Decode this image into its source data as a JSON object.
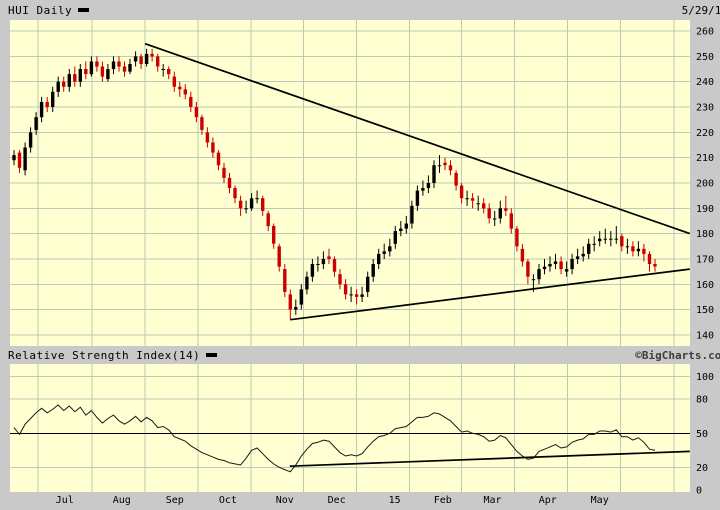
{
  "header": {
    "title": "HUI Daily",
    "date": "5/29/15"
  },
  "rsi_header": {
    "label": "Relative Strength Index(14)",
    "copyright": "©BigCharts.com"
  },
  "colors": {
    "page_bg": "#c9c9c9",
    "plot_bg": "#ffffd2",
    "grid": "#b8ccb8",
    "candle_up": "#000000",
    "candle_down": "#cc0000",
    "trendline": "#000000",
    "rsi_line": "#1a1a1a",
    "hline": "#000000",
    "text": "#000000"
  },
  "x_axis": {
    "months": [
      {
        "label": "Jul",
        "i": 9.2
      },
      {
        "label": "Aug",
        "i": 19.5
      },
      {
        "label": "Sep",
        "i": 29.1
      },
      {
        "label": "Oct",
        "i": 38.7
      },
      {
        "label": "Nov",
        "i": 49.0
      },
      {
        "label": "Dec",
        "i": 58.4
      },
      {
        "label": "15",
        "i": 68.9
      },
      {
        "label": "Feb",
        "i": 77.6
      },
      {
        "label": "Mar",
        "i": 86.6
      },
      {
        "label": "Apr",
        "i": 96.6
      },
      {
        "label": "May",
        "i": 106.0
      }
    ],
    "boundaries": [
      4.3,
      14.1,
      23.7,
      33.3,
      42.9,
      52.4,
      62.0,
      71.6,
      81.0,
      90.6,
      100.2,
      109.8,
      119.4
    ]
  },
  "chart_data": [
    {
      "type": "candlestick",
      "title": "HUI Daily",
      "xlabel": "",
      "ylabel": "",
      "ylim": [
        138,
        262
      ],
      "yticks": [
        140,
        150,
        160,
        170,
        180,
        190,
        200,
        210,
        220,
        230,
        240,
        250,
        260
      ],
      "candles": [
        [
          209,
          213,
          207,
          211
        ],
        [
          212,
          213,
          204,
          206
        ],
        [
          205,
          216,
          203,
          214
        ],
        [
          214,
          222,
          212,
          220
        ],
        [
          221,
          228,
          219,
          226
        ],
        [
          226,
          234,
          224,
          232
        ],
        [
          232,
          234,
          228,
          230
        ],
        [
          230,
          238,
          228,
          236
        ],
        [
          236,
          242,
          234,
          240
        ],
        [
          240,
          242,
          236,
          238
        ],
        [
          238,
          245,
          236,
          243
        ],
        [
          243,
          246,
          238,
          240
        ],
        [
          240,
          247,
          238,
          245
        ],
        [
          245,
          248,
          241,
          243
        ],
        [
          243,
          250,
          242,
          248
        ],
        [
          248,
          250,
          244,
          246
        ],
        [
          246,
          248,
          240,
          242
        ],
        [
          241,
          247,
          240,
          245
        ],
        [
          245,
          250,
          243,
          248
        ],
        [
          248,
          250,
          244,
          246
        ],
        [
          246,
          248,
          242,
          244
        ],
        [
          244,
          249,
          243,
          247
        ],
        [
          248,
          252,
          246,
          250
        ],
        [
          250,
          251,
          245,
          247
        ],
        [
          247,
          253,
          246,
          251
        ],
        [
          251,
          253,
          248,
          250
        ],
        [
          250,
          251,
          244,
          246
        ],
        [
          245,
          247,
          242,
          245
        ],
        [
          245,
          246,
          241,
          243
        ],
        [
          242,
          244,
          236,
          238
        ],
        [
          238,
          240,
          234,
          237
        ],
        [
          237,
          239,
          233,
          235
        ],
        [
          234,
          236,
          228,
          230
        ],
        [
          230,
          232,
          224,
          226
        ],
        [
          226,
          227,
          219,
          221
        ],
        [
          220,
          222,
          214,
          216
        ],
        [
          216,
          218,
          210,
          212
        ],
        [
          212,
          213,
          205,
          207
        ],
        [
          206,
          208,
          200,
          202
        ],
        [
          202,
          204,
          196,
          198
        ],
        [
          198,
          199,
          192,
          194
        ],
        [
          193,
          195,
          187,
          190
        ],
        [
          190,
          193,
          188,
          190
        ],
        [
          190,
          196,
          189,
          194
        ],
        [
          194,
          197,
          192,
          194
        ],
        [
          194,
          195,
          187,
          189
        ],
        [
          188,
          189,
          181,
          183
        ],
        [
          183,
          184,
          174,
          176
        ],
        [
          175,
          176,
          165,
          167
        ],
        [
          166,
          168,
          155,
          157
        ],
        [
          156,
          158,
          146,
          150
        ],
        [
          150,
          154,
          148,
          151
        ],
        [
          152,
          160,
          150,
          158
        ],
        [
          158,
          165,
          156,
          163
        ],
        [
          163,
          170,
          161,
          168
        ],
        [
          168,
          171,
          165,
          168
        ],
        [
          168,
          173,
          166,
          170
        ],
        [
          171,
          174,
          168,
          170
        ],
        [
          170,
          171,
          163,
          165
        ],
        [
          164,
          166,
          158,
          160
        ],
        [
          160,
          162,
          154,
          156
        ],
        [
          156,
          159,
          153,
          156
        ],
        [
          156,
          158,
          152,
          155
        ],
        [
          155,
          159,
          153,
          156
        ],
        [
          157,
          165,
          155,
          163
        ],
        [
          163,
          170,
          161,
          168
        ],
        [
          168,
          174,
          166,
          172
        ],
        [
          172,
          176,
          170,
          173
        ],
        [
          173,
          178,
          171,
          175
        ],
        [
          176,
          183,
          174,
          181
        ],
        [
          181,
          185,
          179,
          182
        ],
        [
          182,
          187,
          180,
          184
        ],
        [
          184,
          193,
          182,
          191
        ],
        [
          191,
          199,
          189,
          197
        ],
        [
          197,
          201,
          195,
          198
        ],
        [
          198,
          203,
          196,
          200
        ],
        [
          200,
          209,
          198,
          207
        ],
        [
          207,
          211,
          204,
          207
        ],
        [
          208,
          210,
          205,
          207
        ],
        [
          207,
          209,
          203,
          205
        ],
        [
          204,
          205,
          197,
          199
        ],
        [
          199,
          200,
          192,
          194
        ],
        [
          194,
          197,
          191,
          194
        ],
        [
          194,
          196,
          190,
          193
        ],
        [
          192,
          195,
          189,
          192
        ],
        [
          192,
          194,
          188,
          190
        ],
        [
          190,
          192,
          184,
          186
        ],
        [
          186,
          189,
          183,
          186
        ],
        [
          186,
          193,
          184,
          190
        ],
        [
          190,
          195,
          187,
          189
        ],
        [
          188,
          190,
          180,
          182
        ],
        [
          182,
          183,
          173,
          175
        ],
        [
          174,
          176,
          167,
          169
        ],
        [
          169,
          170,
          160,
          163
        ],
        [
          162,
          164,
          157,
          162
        ],
        [
          162,
          168,
          160,
          166
        ],
        [
          166,
          170,
          164,
          167
        ],
        [
          167,
          171,
          165,
          168
        ],
        [
          168,
          172,
          166,
          169
        ],
        [
          169,
          171,
          164,
          166
        ],
        [
          165,
          169,
          163,
          166
        ],
        [
          166,
          172,
          164,
          170
        ],
        [
          170,
          174,
          168,
          171
        ],
        [
          171,
          175,
          169,
          172
        ],
        [
          172,
          178,
          170,
          176
        ],
        [
          176,
          179,
          173,
          176
        ],
        [
          177,
          181,
          175,
          178
        ],
        [
          178,
          182,
          176,
          178
        ],
        [
          178,
          181,
          175,
          178
        ],
        [
          178,
          183,
          176,
          178
        ],
        [
          179,
          180,
          173,
          175
        ],
        [
          175,
          178,
          172,
          175
        ],
        [
          175,
          177,
          171,
          173
        ],
        [
          173,
          177,
          171,
          174
        ],
        [
          174,
          176,
          169,
          172
        ],
        [
          172,
          173,
          165,
          168
        ],
        [
          168,
          170,
          165,
          167
        ]
      ],
      "trendlines": [
        {
          "name": "descending-resistance",
          "points": [
            [
              23.7,
              255
            ],
            [
              122.3,
              180
            ]
          ]
        },
        {
          "name": "ascending-support",
          "points": [
            [
              50,
              146
            ],
            [
              122.3,
              166
            ]
          ]
        }
      ]
    },
    {
      "type": "line",
      "title": "Relative Strength Index(14)",
      "ylim": [
        0,
        104
      ],
      "yticks": [
        0,
        20,
        50,
        80,
        100
      ],
      "hline": 50,
      "values": [
        55,
        49,
        58,
        63,
        68,
        72,
        68,
        71,
        75,
        70,
        74,
        69,
        73,
        66,
        70,
        64,
        59,
        63,
        66,
        61,
        58,
        61,
        65,
        60,
        64,
        61,
        55,
        56,
        53,
        47,
        45,
        43,
        39,
        36,
        33,
        31,
        29,
        27,
        26,
        24,
        23,
        22,
        28,
        35,
        37,
        32,
        27,
        23,
        20,
        18,
        16,
        22,
        30,
        36,
        41,
        42,
        44,
        43,
        38,
        33,
        30,
        31,
        30,
        32,
        38,
        43,
        47,
        48,
        50,
        54,
        55,
        56,
        60,
        64,
        64,
        65,
        68,
        67,
        64,
        61,
        56,
        51,
        52,
        50,
        49,
        47,
        43,
        44,
        48,
        46,
        40,
        34,
        30,
        27,
        28,
        34,
        36,
        38,
        40,
        37,
        38,
        42,
        44,
        45,
        49,
        49,
        52,
        52,
        51,
        53,
        47,
        47,
        44,
        46,
        42,
        36,
        35
      ],
      "trendlines": [
        {
          "name": "ascending-support",
          "points": [
            [
              49.9,
              21
            ],
            [
              122.3,
              34
            ]
          ]
        }
      ]
    }
  ]
}
